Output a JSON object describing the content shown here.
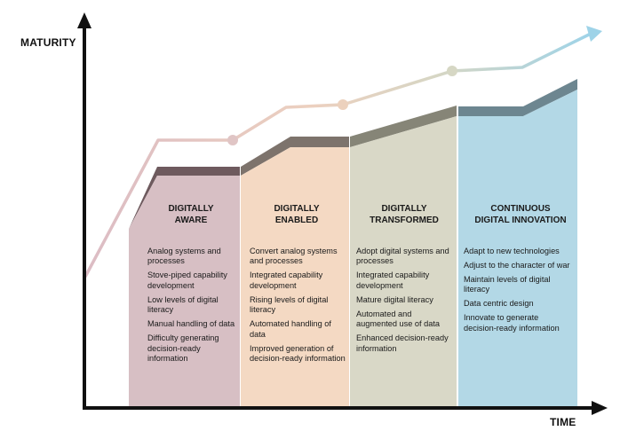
{
  "y_axis_label": "MATURITY",
  "x_axis_label": "TIME",
  "stages": [
    {
      "title_lines": [
        "DIGITALLY",
        "AWARE"
      ],
      "color": "#d7bfc4",
      "items": [
        "Analog systems and processes",
        "Stove-piped capability development",
        "Low levels of digital literacy",
        "Manual handling of data",
        "Difficulty generating decision-ready information"
      ]
    },
    {
      "title_lines": [
        "DIGITALLY",
        "ENABLED"
      ],
      "color": "#f4d9c3",
      "items": [
        "Convert analog systems and processes",
        "Integrated capability development",
        "Rising levels of digital literacy",
        "Automated handling of data",
        "Improved generation of decision-ready information"
      ]
    },
    {
      "title_lines": [
        "DIGITALLY",
        "TRANSFORMED"
      ],
      "color": "#d9d8c7",
      "items": [
        "Adopt digital systems and processes",
        "Integrated capability development",
        "Mature digital literacy",
        "Automated and augmented use of data",
        "Enhanced decision-ready information"
      ]
    },
    {
      "title_lines": [
        "CONTINUOUS",
        "DIGITAL INNOVATION"
      ],
      "color": "#b3d8e6",
      "items": [
        "Adapt to new technologies",
        "Adjust to the character of war",
        "Maintain levels of digital literacy",
        "Data centric design",
        "Innovate to generate decision-ready information"
      ]
    }
  ]
}
